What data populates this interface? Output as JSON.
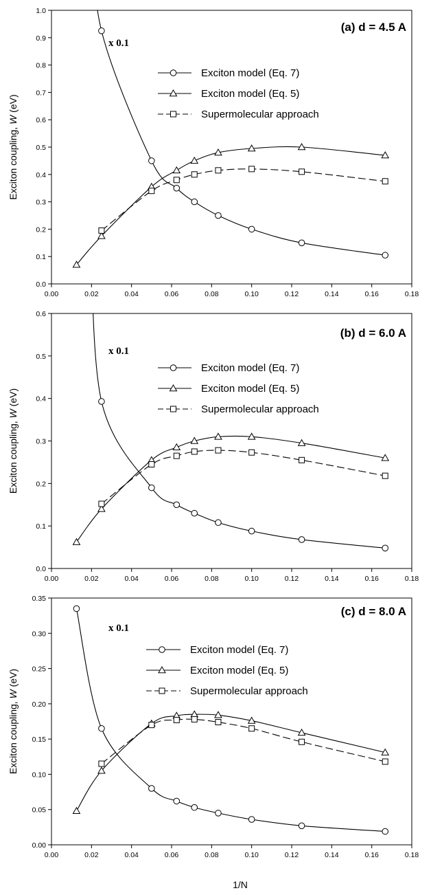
{
  "figure": {
    "xlabel": "1/N"
  },
  "chart_data": [
    {
      "type": "line",
      "title": "(a) d = 4.5 A",
      "annotation": "x 0.1",
      "ylabel_prefix": "Exciton coupling, ",
      "ylabel_symbol": "W",
      "ylabel_suffix": " (eV)",
      "xlim": [
        0.0,
        0.18
      ],
      "ylim": [
        0.0,
        1.0
      ],
      "xticks": [
        0.0,
        0.02,
        0.04,
        0.06,
        0.08,
        0.1,
        0.12,
        0.14,
        0.16,
        0.18
      ],
      "yticks": [
        0.0,
        0.1,
        0.2,
        0.3,
        0.4,
        0.5,
        0.6,
        0.7,
        0.8,
        0.9,
        1.0
      ],
      "xtick_labels": [
        "0.00",
        "0.02",
        "0.04",
        "0.06",
        "0.08",
        "0.10",
        "0.12",
        "0.14",
        "0.16",
        "0.18"
      ],
      "ytick_labels": [
        "0.0",
        "0.1",
        "0.2",
        "0.3",
        "0.4",
        "0.5",
        "0.6",
        "0.7",
        "0.8",
        "0.9",
        "1.0"
      ],
      "legend_position": "upper-right",
      "series": [
        {
          "name": "Exciton model (Eq. 7)",
          "marker": "circle",
          "dash": "solid",
          "x": [
            0.025,
            0.05,
            0.0625,
            0.0714,
            0.0833,
            0.1,
            0.125,
            0.1667
          ],
          "y": [
            0.925,
            0.45,
            0.35,
            0.3,
            0.25,
            0.2,
            0.15,
            0.105
          ]
        },
        {
          "name": "Exciton model (Eq. 5)",
          "marker": "triangle",
          "dash": "solid",
          "x": [
            0.0125,
            0.025,
            0.05,
            0.0625,
            0.0714,
            0.0833,
            0.1,
            0.125,
            0.1667
          ],
          "y": [
            0.07,
            0.175,
            0.355,
            0.415,
            0.45,
            0.48,
            0.495,
            0.5,
            0.47
          ]
        },
        {
          "name": "Supermolecular approach",
          "marker": "square",
          "dash": "dashed",
          "x": [
            0.025,
            0.05,
            0.0625,
            0.0714,
            0.0833,
            0.1,
            0.125,
            0.1667
          ],
          "y": [
            0.195,
            0.34,
            0.38,
            0.4,
            0.415,
            0.42,
            0.41,
            0.375
          ]
        }
      ]
    },
    {
      "type": "line",
      "title": "(b) d = 6.0 A",
      "annotation": "x 0.1",
      "ylabel_prefix": "Exciton coupling, ",
      "ylabel_symbol": "W",
      "ylabel_suffix": " (eV)",
      "xlim": [
        0.0,
        0.18
      ],
      "ylim": [
        0.0,
        0.6
      ],
      "xticks": [
        0.0,
        0.02,
        0.04,
        0.06,
        0.08,
        0.1,
        0.12,
        0.14,
        0.16,
        0.18
      ],
      "yticks": [
        0.0,
        0.1,
        0.2,
        0.3,
        0.4,
        0.5,
        0.6
      ],
      "xtick_labels": [
        "0.00",
        "0.02",
        "0.04",
        "0.06",
        "0.08",
        "0.10",
        "0.12",
        "0.14",
        "0.16",
        "0.18"
      ],
      "ytick_labels": [
        "0.0",
        "0.1",
        "0.2",
        "0.3",
        "0.4",
        "0.5",
        "0.6"
      ],
      "legend_position": "upper-right",
      "series": [
        {
          "name": "Exciton model (Eq. 7)",
          "marker": "circle",
          "dash": "solid",
          "x": [
            0.025,
            0.05,
            0.0625,
            0.0714,
            0.0833,
            0.1,
            0.125,
            0.1667
          ],
          "y": [
            0.393,
            0.19,
            0.15,
            0.13,
            0.108,
            0.088,
            0.068,
            0.048
          ]
        },
        {
          "name": "Exciton model (Eq. 5)",
          "marker": "triangle",
          "dash": "solid",
          "x": [
            0.0125,
            0.025,
            0.05,
            0.0625,
            0.0714,
            0.0833,
            0.1,
            0.125,
            0.1667
          ],
          "y": [
            0.062,
            0.14,
            0.255,
            0.285,
            0.3,
            0.31,
            0.31,
            0.295,
            0.26
          ]
        },
        {
          "name": "Supermolecular approach",
          "marker": "square",
          "dash": "dashed",
          "x": [
            0.025,
            0.05,
            0.0625,
            0.0714,
            0.0833,
            0.1,
            0.125,
            0.1667
          ],
          "y": [
            0.152,
            0.245,
            0.265,
            0.275,
            0.278,
            0.273,
            0.255,
            0.218
          ]
        }
      ]
    },
    {
      "type": "line",
      "title": "(c) d = 8.0 A",
      "annotation": "x 0.1",
      "ylabel_prefix": "Exciton coupling, ",
      "ylabel_symbol": "W",
      "ylabel_suffix": " (eV)",
      "xlim": [
        0.0,
        0.18
      ],
      "ylim": [
        0.0,
        0.35
      ],
      "xticks": [
        0.0,
        0.02,
        0.04,
        0.06,
        0.08,
        0.1,
        0.12,
        0.14,
        0.16,
        0.18
      ],
      "yticks": [
        0.0,
        0.05,
        0.1,
        0.15,
        0.2,
        0.25,
        0.3,
        0.35
      ],
      "xtick_labels": [
        "0.00",
        "0.02",
        "0.04",
        "0.06",
        "0.08",
        "0.10",
        "0.12",
        "0.14",
        "0.16",
        "0.18"
      ],
      "ytick_labels": [
        "0.00",
        "0.05",
        "0.10",
        "0.15",
        "0.20",
        "0.25",
        "0.30",
        "0.35"
      ],
      "legend_position": "upper-right",
      "series": [
        {
          "name": "Exciton model (Eq. 7)",
          "marker": "circle",
          "dash": "solid",
          "x": [
            0.0125,
            0.025,
            0.05,
            0.0625,
            0.0714,
            0.0833,
            0.1,
            0.125,
            0.1667
          ],
          "y": [
            0.335,
            0.165,
            0.08,
            0.062,
            0.053,
            0.045,
            0.036,
            0.027,
            0.019
          ]
        },
        {
          "name": "Exciton model (Eq. 5)",
          "marker": "triangle",
          "dash": "solid",
          "x": [
            0.0125,
            0.025,
            0.05,
            0.0625,
            0.0714,
            0.0833,
            0.1,
            0.125,
            0.1667
          ],
          "y": [
            0.048,
            0.105,
            0.172,
            0.183,
            0.185,
            0.184,
            0.176,
            0.159,
            0.131
          ]
        },
        {
          "name": "Supermolecular approach",
          "marker": "square",
          "dash": "dashed",
          "x": [
            0.025,
            0.05,
            0.0625,
            0.0714,
            0.0833,
            0.1,
            0.125,
            0.1667
          ],
          "y": [
            0.115,
            0.17,
            0.177,
            0.178,
            0.174,
            0.165,
            0.146,
            0.118
          ]
        }
      ]
    }
  ]
}
